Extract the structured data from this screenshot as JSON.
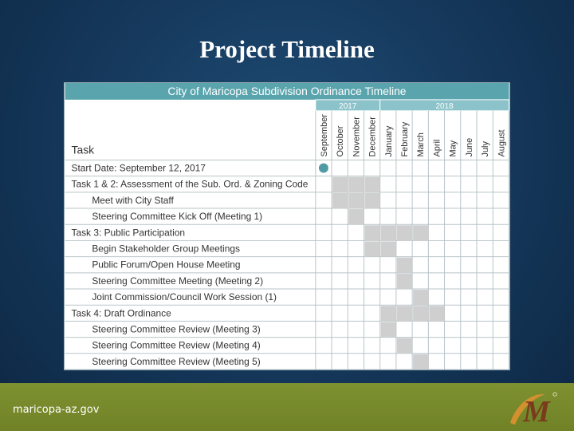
{
  "slide": {
    "title": "Project Timeline",
    "footer_url": "maricopa-az.gov"
  },
  "colors": {
    "header_teal": "#5aa4ad",
    "year_teal": "#8cc3ca",
    "bar_gray": "#cfcfcf",
    "milestone_teal": "#4f9aa3",
    "footer_olive": "#7a8d2d",
    "logo_brown": "#7a3a1c",
    "logo_orange": "#d4902e"
  },
  "chart_data": {
    "type": "table",
    "title": "City of Maricopa Subdivision Ordinance Timeline",
    "task_column_label": "Task",
    "years": [
      {
        "label": "2017",
        "start_month": 0,
        "span": 4
      },
      {
        "label": "2018",
        "start_month": 4,
        "span": 8
      }
    ],
    "months": [
      "September",
      "October",
      "November",
      "December",
      "January",
      "February",
      "March",
      "April",
      "May",
      "June",
      "July",
      "August"
    ],
    "rows": [
      {
        "label": "Start Date: September 12, 2017",
        "indent": 0,
        "milestone": 0,
        "bars": []
      },
      {
        "label": "Task 1 & 2: Assessment of the Sub. Ord. & Zoning Code",
        "indent": 0,
        "bars": [
          1,
          2,
          3
        ]
      },
      {
        "label": "Meet with City Staff",
        "indent": 1,
        "bars": [
          1,
          2,
          3
        ]
      },
      {
        "label": "Steering Committee Kick Off (Meeting 1)",
        "indent": 1,
        "bars": [
          2
        ]
      },
      {
        "label": "Task 3: Public Participation",
        "indent": 0,
        "bars": [
          3,
          4,
          5,
          6
        ]
      },
      {
        "label": "Begin Stakeholder Group Meetings",
        "indent": 1,
        "bars": [
          3,
          4
        ]
      },
      {
        "label": "Public Forum/Open House Meeting",
        "indent": 1,
        "bars": [
          5
        ]
      },
      {
        "label": "Steering Committee Meeting (Meeting 2)",
        "indent": 1,
        "bars": [
          5
        ]
      },
      {
        "label": "Joint Commission/Council Work Session (1)",
        "indent": 1,
        "bars": [
          6
        ]
      },
      {
        "label": "Task 4: Draft Ordinance",
        "indent": 0,
        "bars": [
          4,
          5,
          6,
          7
        ]
      },
      {
        "label": "Steering Committee Review (Meeting 3)",
        "indent": 1,
        "bars": [
          4
        ]
      },
      {
        "label": "Steering Committee Review (Meeting 4)",
        "indent": 1,
        "bars": [
          5
        ]
      },
      {
        "label": "Steering Committee Review (Meeting 5)",
        "indent": 1,
        "bars": [
          6
        ]
      }
    ]
  }
}
